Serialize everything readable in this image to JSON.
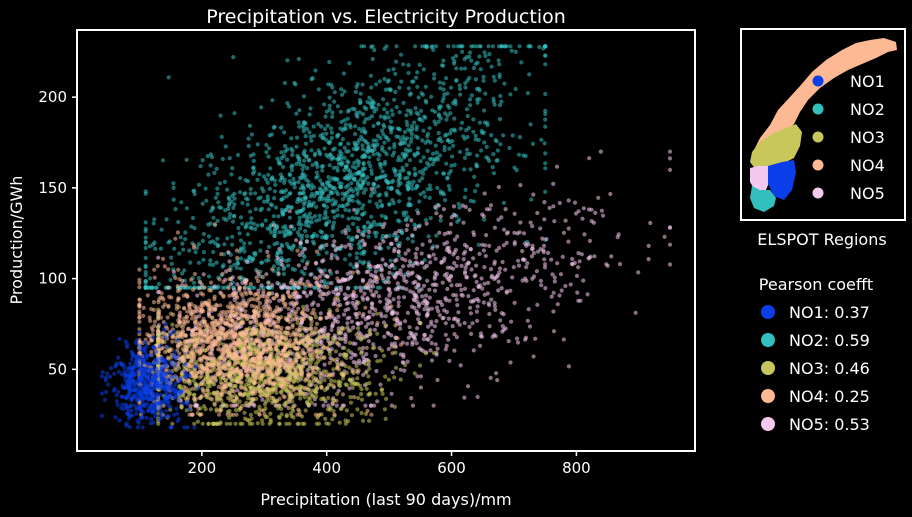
{
  "chart_data": {
    "type": "scatter",
    "title": "Precipitation vs. Electricity Production",
    "xlabel": "Precipitation (last 90 days)/mm",
    "ylabel": "Production/GWh",
    "xlim": [
      0,
      990
    ],
    "ylim": [
      5,
      237
    ],
    "xticks": [
      200,
      400,
      600,
      800
    ],
    "yticks": [
      50,
      100,
      150,
      200
    ],
    "grid": false,
    "series": [
      {
        "name": "NO1",
        "color": "#0a3ee8",
        "cluster": {
          "x_mean": 115,
          "x_sd": 30,
          "y_mean": 42,
          "y_sd": 11,
          "x_min": 40,
          "x_max": 240,
          "y_min": 18,
          "y_max": 75,
          "n": 500
        }
      },
      {
        "name": "NO2",
        "color": "#34bfbf",
        "cluster": {
          "x_mean": 430,
          "x_sd": 150,
          "y_mean": 150,
          "y_sd": 32,
          "x_min": 110,
          "x_max": 750,
          "y_min": 95,
          "y_max": 228,
          "n": 1700
        }
      },
      {
        "name": "NO3",
        "color": "#c8c85a",
        "cluster": {
          "x_mean": 290,
          "x_sd": 95,
          "y_mean": 48,
          "y_sd": 15,
          "x_min": 130,
          "x_max": 700,
          "y_min": 20,
          "y_max": 95,
          "n": 1100
        }
      },
      {
        "name": "NO4",
        "color": "#fdb993",
        "cluster": {
          "x_mean": 255,
          "x_sd": 80,
          "y_mean": 65,
          "y_sd": 18,
          "x_min": 100,
          "x_max": 560,
          "y_min": 25,
          "y_max": 130,
          "n": 1300
        }
      },
      {
        "name": "NO5",
        "color": "#f5c9ef",
        "cluster": {
          "x_mean": 460,
          "x_sd": 190,
          "y_mean": 88,
          "y_sd": 26,
          "x_min": 130,
          "x_max": 950,
          "y_min": 30,
          "y_max": 170,
          "n": 1400
        }
      }
    ]
  },
  "map_legend": {
    "caption": "ELSPOT Regions",
    "items": [
      {
        "label": "NO1",
        "color": "#0a3ee8"
      },
      {
        "label": "NO2",
        "color": "#34bfbf"
      },
      {
        "label": "NO3",
        "color": "#c8c85a"
      },
      {
        "label": "NO4",
        "color": "#fdb993"
      },
      {
        "label": "NO5",
        "color": "#f5c9ef"
      }
    ]
  },
  "pearson_legend": {
    "title": "Pearson coefft",
    "items": [
      {
        "label": "NO1: 0.37",
        "color": "#0a3ee8"
      },
      {
        "label": "NO2: 0.59",
        "color": "#34bfbf"
      },
      {
        "label": "NO3: 0.46",
        "color": "#c8c85a"
      },
      {
        "label": "NO4: 0.25",
        "color": "#fdb993"
      },
      {
        "label": "NO5: 0.53",
        "color": "#f5c9ef"
      }
    ]
  }
}
